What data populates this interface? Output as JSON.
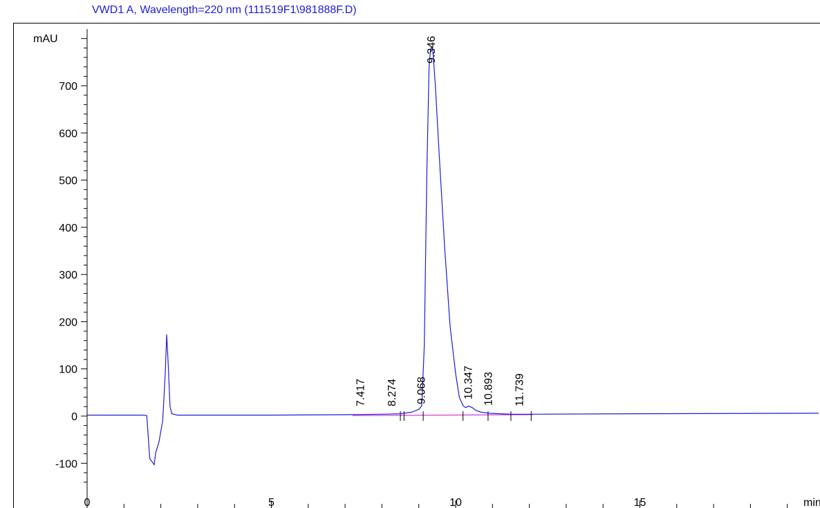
{
  "header_fragment": "",
  "chart_data": {
    "type": "line",
    "title": "VWD1 A, Wavelength=220 nm (111519F1\\981888F.D)",
    "xlabel": "min",
    "ylabel": "mAU",
    "xlim": [
      0,
      19.85
    ],
    "ylim": [
      -150,
      825
    ],
    "x_ticks": [
      0,
      5,
      10,
      15
    ],
    "y_ticks": [
      -100,
      0,
      100,
      200,
      300,
      400,
      500,
      600,
      700
    ],
    "series": [
      {
        "color": "#1c1cd2",
        "x": [
          0.0,
          1.5,
          1.62,
          1.7,
          1.82,
          1.86,
          1.95,
          2.05,
          2.12,
          2.16,
          2.2,
          2.25,
          2.3,
          2.45,
          3.0,
          5.0,
          7.0,
          8.0,
          8.5,
          8.8,
          9.0,
          9.08,
          9.15,
          9.22,
          9.28,
          9.32,
          9.35,
          9.38,
          9.45,
          9.55,
          9.7,
          9.85,
          10.0,
          10.1,
          10.2,
          10.27,
          10.35,
          10.45,
          10.55,
          10.7,
          10.9,
          11.2,
          11.5,
          12.0,
          15.0,
          19.85
        ],
        "y": [
          2,
          2,
          1,
          -90,
          -103,
          -78,
          -55,
          -10,
          90,
          173,
          110,
          20,
          5,
          2,
          2,
          2,
          3,
          4,
          5,
          8,
          14,
          22,
          150,
          520,
          740,
          778,
          782,
          775,
          700,
          560,
          360,
          190,
          90,
          40,
          22,
          18,
          21,
          18,
          12,
          8,
          6,
          5,
          4,
          4,
          5,
          6
        ]
      }
    ],
    "baseline": {
      "color": "#d63ad6",
      "x": [
        7.2,
        12.1
      ],
      "y": [
        1,
        3
      ]
    },
    "peaks": [
      {
        "label": "7.417",
        "rt": 7.417
      },
      {
        "label": "8.274",
        "rt": 8.274
      },
      {
        "label": "9.068",
        "rt": 9.068
      },
      {
        "label": "9.346",
        "rt": 9.346
      },
      {
        "label": "10.347",
        "rt": 10.347
      },
      {
        "label": "10.893",
        "rt": 10.893
      },
      {
        "label": "11.739",
        "rt": 11.739
      }
    ],
    "integration_marks": [
      8.5,
      8.6,
      9.12,
      10.2,
      10.88,
      11.5,
      12.05
    ],
    "grid": false
  }
}
